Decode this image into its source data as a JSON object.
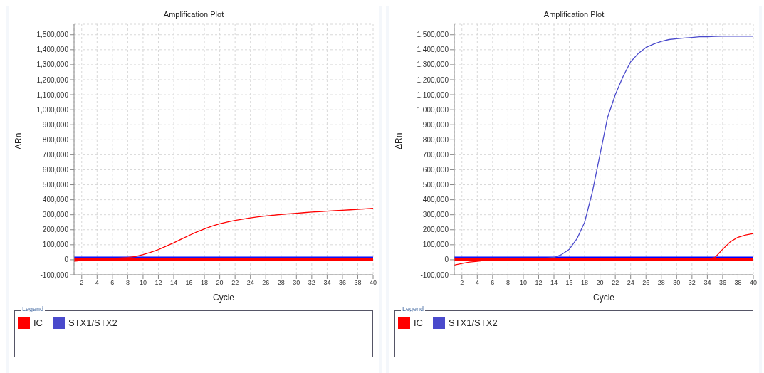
{
  "chart_data": [
    {
      "type": "line",
      "title": "Amplification Plot",
      "xlabel": "Cycle",
      "ylabel": "ΔRn",
      "legend_title": "Legend",
      "legend": "bottom",
      "grid": true,
      "marker": "none",
      "line_style": "solid",
      "x": [
        1,
        2,
        3,
        4,
        5,
        6,
        7,
        8,
        9,
        10,
        11,
        12,
        13,
        14,
        15,
        16,
        17,
        18,
        19,
        20,
        21,
        22,
        23,
        24,
        25,
        26,
        27,
        28,
        29,
        30,
        31,
        32,
        33,
        34,
        35,
        36,
        37,
        38,
        39,
        40
      ],
      "xlim": [
        1,
        40
      ],
      "xticks": [
        2,
        4,
        6,
        8,
        10,
        12,
        14,
        16,
        18,
        20,
        22,
        24,
        26,
        28,
        30,
        32,
        34,
        36,
        38,
        40
      ],
      "ylim": [
        -100000,
        1570000
      ],
      "yticks": [
        {
          "value": -100000,
          "label": "-100,000"
        },
        0,
        {
          "value": 100000,
          "label": "100,000"
        },
        {
          "value": 200000,
          "label": "200,000"
        },
        {
          "value": 300000,
          "label": "300,000"
        },
        {
          "value": 400000,
          "label": "400,000"
        },
        {
          "value": 500000,
          "label": "500,000"
        },
        {
          "value": 600000,
          "label": "600,000"
        },
        {
          "value": 700000,
          "label": "700,000"
        },
        {
          "value": 800000,
          "label": "800,000"
        },
        {
          "value": 900000,
          "label": "900,000"
        },
        {
          "value": 1000000,
          "label": "1,000,000"
        },
        {
          "value": 1100000,
          "label": "1,100,000"
        },
        {
          "value": 1200000,
          "label": "1,200,000"
        },
        {
          "value": 1300000,
          "label": "1,300,000"
        },
        {
          "value": 1400000,
          "label": "1,400,000"
        },
        {
          "value": 1500000,
          "label": "1,500,000"
        }
      ],
      "ref_lines": [
        {
          "axis": "y",
          "value": 12000,
          "color": "#0000ff"
        },
        {
          "axis": "y",
          "value": 2000,
          "color": "#ff0000"
        }
      ],
      "series": [
        {
          "name": "IC",
          "color": "#ff0000",
          "values": [
            -10000,
            -5000,
            0,
            3000,
            6000,
            9000,
            12000,
            15000,
            22000,
            35000,
            50000,
            68000,
            90000,
            113000,
            138000,
            162000,
            185000,
            205000,
            224000,
            240000,
            252000,
            262000,
            271000,
            279000,
            286000,
            292000,
            297000,
            302000,
            306000,
            310000,
            314000,
            318000,
            321000,
            324000,
            327000,
            330000,
            333000,
            336000,
            339000,
            343000
          ]
        },
        {
          "name": "STX1/STX2",
          "color": "#4a4acc",
          "values": [
            12000,
            12000,
            12000,
            12000,
            12000,
            12000,
            12000,
            12000,
            12000,
            12000,
            12000,
            12000,
            12000,
            12000,
            12000,
            12000,
            12000,
            12000,
            12000,
            12000,
            12000,
            12000,
            12000,
            12000,
            12000,
            12000,
            12000,
            12000,
            12000,
            12000,
            12000,
            12000,
            12000,
            12000,
            12000,
            12000,
            12000,
            12000,
            12000,
            12000
          ]
        }
      ]
    },
    {
      "type": "line",
      "title": "Amplification Plot",
      "xlabel": "Cycle",
      "ylabel": "ΔRn",
      "legend_title": "Legend",
      "legend": "bottom",
      "grid": true,
      "marker": "none",
      "line_style": "solid",
      "x": [
        1,
        2,
        3,
        4,
        5,
        6,
        7,
        8,
        9,
        10,
        11,
        12,
        13,
        14,
        15,
        16,
        17,
        18,
        19,
        20,
        21,
        22,
        23,
        24,
        25,
        26,
        27,
        28,
        29,
        30,
        31,
        32,
        33,
        34,
        35,
        36,
        37,
        38,
        39,
        40
      ],
      "xlim": [
        1,
        40
      ],
      "xticks": [
        2,
        4,
        6,
        8,
        10,
        12,
        14,
        16,
        18,
        20,
        22,
        24,
        26,
        28,
        30,
        32,
        34,
        36,
        38,
        40
      ],
      "ylim": [
        -100000,
        1570000
      ],
      "yticks": [
        {
          "value": -100000,
          "label": "-100,000"
        },
        0,
        {
          "value": 100000,
          "label": "100,000"
        },
        {
          "value": 200000,
          "label": "200,000"
        },
        {
          "value": 300000,
          "label": "300,000"
        },
        {
          "value": 400000,
          "label": "400,000"
        },
        {
          "value": 500000,
          "label": "500,000"
        },
        {
          "value": 600000,
          "label": "600,000"
        },
        {
          "value": 700000,
          "label": "700,000"
        },
        {
          "value": 800000,
          "label": "800,000"
        },
        {
          "value": 900000,
          "label": "900,000"
        },
        {
          "value": 1000000,
          "label": "1,000,000"
        },
        {
          "value": 1100000,
          "label": "1,100,000"
        },
        {
          "value": 1200000,
          "label": "1,200,000"
        },
        {
          "value": 1300000,
          "label": "1,300,000"
        },
        {
          "value": 1400000,
          "label": "1,400,000"
        },
        {
          "value": 1500000,
          "label": "1,500,000"
        }
      ],
      "ref_lines": [
        {
          "axis": "y",
          "value": 12000,
          "color": "#0000ff"
        },
        {
          "axis": "y",
          "value": 2000,
          "color": "#ff0000"
        }
      ],
      "series": [
        {
          "name": "IC",
          "color": "#ff0000",
          "values": [
            -35000,
            -25000,
            -15000,
            -10000,
            -5000,
            0,
            0,
            0,
            0,
            0,
            0,
            0,
            0,
            0,
            0,
            0,
            0,
            0,
            0,
            0,
            -3000,
            -5000,
            -5000,
            -5000,
            -5000,
            -5000,
            -5000,
            -5000,
            -3000,
            0,
            2000,
            3000,
            4000,
            5000,
            15000,
            70000,
            120000,
            150000,
            165000,
            175000
          ]
        },
        {
          "name": "STX1/STX2",
          "color": "#4a4acc",
          "values": [
            12000,
            12000,
            12000,
            12000,
            12000,
            12000,
            12000,
            12000,
            12000,
            12000,
            12000,
            12000,
            12000,
            15000,
            35000,
            70000,
            140000,
            250000,
            450000,
            700000,
            950000,
            1100000,
            1220000,
            1320000,
            1375000,
            1415000,
            1438000,
            1455000,
            1468000,
            1473000,
            1478000,
            1482000,
            1486000,
            1487000,
            1489000,
            1490000,
            1490000,
            1490000,
            1490000,
            1490000
          ]
        }
      ]
    }
  ]
}
